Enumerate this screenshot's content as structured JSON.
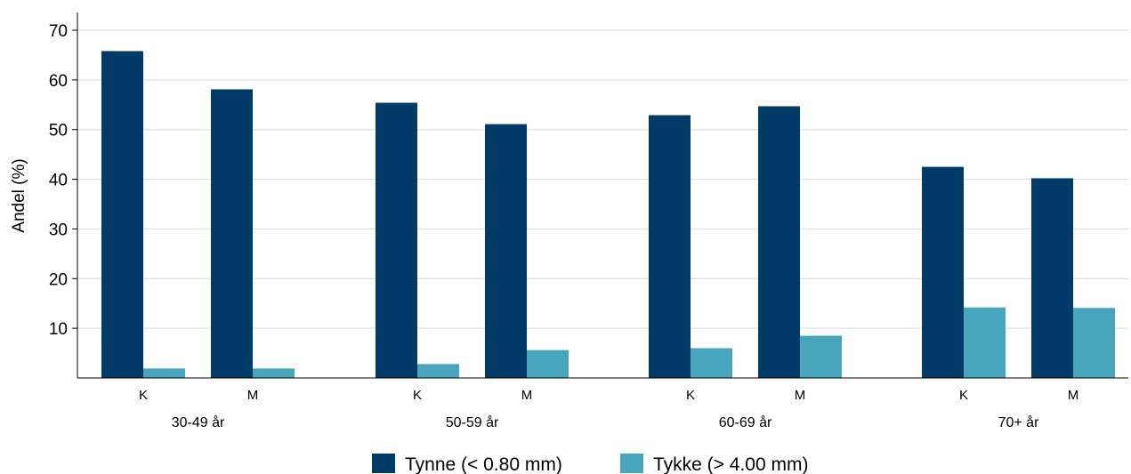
{
  "chart_data": {
    "type": "bar",
    "ylabel": "Andel (%)",
    "ylim": [
      0,
      70
    ],
    "yticks": [
      10,
      20,
      30,
      40,
      50,
      60,
      70
    ],
    "grid": true,
    "legend_position": "bottom",
    "groups": [
      {
        "label": "30-49 år",
        "categories": [
          "K",
          "M"
        ]
      },
      {
        "label": "50-59 år",
        "categories": [
          "K",
          "M"
        ]
      },
      {
        "label": "60-69 år",
        "categories": [
          "K",
          "M"
        ]
      },
      {
        "label": "70+ år",
        "categories": [
          "K",
          "M"
        ]
      }
    ],
    "series": [
      {
        "name": "Tynne (< 0.80 mm)",
        "color": "#003a66",
        "values": [
          65.8,
          58.1,
          55.4,
          51.1,
          52.9,
          54.7,
          42.5,
          40.2
        ]
      },
      {
        "name": "Tykke (> 4.00 mm)",
        "color": "#47a6bc",
        "values": [
          1.9,
          1.9,
          2.8,
          5.6,
          6.0,
          8.5,
          14.2,
          14.1
        ]
      }
    ]
  }
}
